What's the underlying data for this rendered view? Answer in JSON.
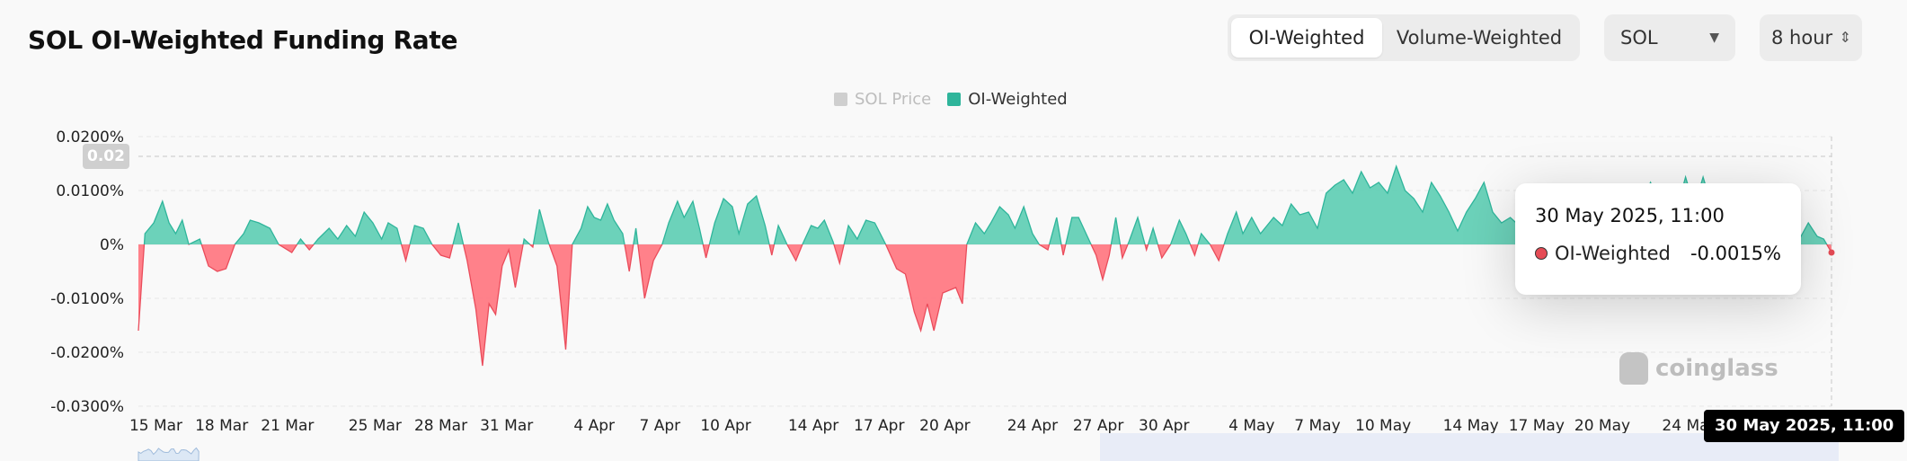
{
  "header": {
    "title": "SOL OI-Weighted Funding Rate",
    "toggle": [
      "OI-Weighted",
      "Volume-Weighted"
    ],
    "active_toggle": "OI-Weighted",
    "coin_select": "SOL",
    "interval_select": "8 hour"
  },
  "legend": [
    {
      "label": "SOL Price",
      "color": "#cfcfcf",
      "enabled": false
    },
    {
      "label": "OI-Weighted",
      "color": "#2fb59b",
      "enabled": true
    }
  ],
  "tooltip": {
    "date": "30 May 2025, 11:00",
    "series": "OI-Weighted",
    "value": "-0.0015%"
  },
  "crosshair": {
    "x_label": "30 May 2025, 11:00",
    "y_label": "0.02"
  },
  "watermark": "coinglass",
  "colors": {
    "positive": "#5ccdb3",
    "positive_line": "#2fb59b",
    "negative": "#ff7a84",
    "negative_line": "#ea4c5b"
  },
  "chart_data": {
    "type": "area",
    "title": "SOL OI-Weighted Funding Rate",
    "ylabel": "",
    "xlabel": "",
    "ylim": [
      -0.03,
      0.02
    ],
    "y_ticks": [
      "0.0200%",
      "0.0100%",
      "0%",
      "-0.0100%",
      "-0.0200%",
      "-0.0300%"
    ],
    "y_tick_values": [
      0.02,
      0.01,
      0,
      -0.01,
      -0.02,
      -0.03
    ],
    "x_ticks": [
      "15 Mar",
      "18 Mar",
      "21 Mar",
      "25 Mar",
      "28 Mar",
      "31 Mar",
      "4 Apr",
      "7 Apr",
      "10 Apr",
      "14 Apr",
      "17 Apr",
      "20 Apr",
      "24 Apr",
      "27 Apr",
      "30 Apr",
      "4 May",
      "7 May",
      "10 May",
      "14 May",
      "17 May",
      "20 May",
      "24 May"
    ],
    "x_tick_days": [
      74,
      77,
      80,
      84,
      87,
      90,
      94,
      97,
      100,
      104,
      107,
      110,
      114,
      117,
      120,
      124,
      127,
      130,
      134,
      137,
      140,
      144
    ],
    "x_range_days": [
      73.2,
      150.458
    ],
    "grid": true,
    "series": [
      {
        "name": "OI-Weighted",
        "unit": "%",
        "points": [
          [
            73.2,
            -0.016
          ],
          [
            73.5,
            0.002
          ],
          [
            73.9,
            0.004
          ],
          [
            74.3,
            0.008
          ],
          [
            74.6,
            0.004
          ],
          [
            74.9,
            0.002
          ],
          [
            75.2,
            0.0045
          ],
          [
            75.5,
            0
          ],
          [
            76.0,
            0.001
          ],
          [
            76.4,
            -0.004
          ],
          [
            76.8,
            -0.005
          ],
          [
            77.2,
            -0.0045
          ],
          [
            77.6,
            0
          ],
          [
            78.0,
            0.002
          ],
          [
            78.3,
            0.0045
          ],
          [
            78.7,
            0.004
          ],
          [
            79.2,
            0.003
          ],
          [
            79.6,
            0
          ],
          [
            80.2,
            -0.0015
          ],
          [
            80.6,
            0.001
          ],
          [
            81.0,
            -0.001
          ],
          [
            81.4,
            0.001
          ],
          [
            81.9,
            0.003
          ],
          [
            82.3,
            0.001
          ],
          [
            82.7,
            0.0035
          ],
          [
            83.1,
            0.0015
          ],
          [
            83.5,
            0.006
          ],
          [
            83.9,
            0.004
          ],
          [
            84.3,
            0.001
          ],
          [
            84.6,
            0.004
          ],
          [
            85.0,
            0.003
          ],
          [
            85.4,
            -0.003
          ],
          [
            85.8,
            0.0035
          ],
          [
            86.2,
            0.003
          ],
          [
            86.6,
            0
          ],
          [
            87.0,
            -0.002
          ],
          [
            87.4,
            -0.0025
          ],
          [
            87.8,
            0.004
          ],
          [
            88.2,
            -0.003
          ],
          [
            88.6,
            -0.012
          ],
          [
            88.9,
            -0.0225
          ],
          [
            89.2,
            -0.011
          ],
          [
            89.5,
            -0.013
          ],
          [
            89.8,
            -0.004
          ],
          [
            90.1,
            -0.001
          ],
          [
            90.4,
            -0.008
          ],
          [
            90.8,
            0.001
          ],
          [
            91.2,
            -0.0005
          ],
          [
            91.5,
            0.0065
          ],
          [
            91.9,
            0.0005
          ],
          [
            92.3,
            -0.004
          ],
          [
            92.7,
            -0.0195
          ],
          [
            93.0,
            0
          ],
          [
            93.4,
            0.003
          ],
          [
            93.7,
            0.007
          ],
          [
            94.0,
            0.005
          ],
          [
            94.3,
            0.0045
          ],
          [
            94.6,
            0.0075
          ],
          [
            94.9,
            0.0045
          ],
          [
            95.3,
            0.002
          ],
          [
            95.6,
            -0.005
          ],
          [
            95.9,
            0.003
          ],
          [
            96.3,
            -0.01
          ],
          [
            96.7,
            -0.003
          ],
          [
            97.1,
            0
          ],
          [
            97.4,
            0.004
          ],
          [
            97.8,
            0.008
          ],
          [
            98.1,
            0.005
          ],
          [
            98.5,
            0.008
          ],
          [
            98.8,
            0.003
          ],
          [
            99.1,
            -0.0025
          ],
          [
            99.5,
            0.004
          ],
          [
            99.9,
            0.0085
          ],
          [
            100.3,
            0.007
          ],
          [
            100.6,
            0.002
          ],
          [
            101.0,
            0.0075
          ],
          [
            101.4,
            0.009
          ],
          [
            101.8,
            0.0035
          ],
          [
            102.1,
            -0.002
          ],
          [
            102.4,
            0.0035
          ],
          [
            102.8,
            0
          ],
          [
            103.2,
            -0.003
          ],
          [
            103.5,
            0
          ],
          [
            103.9,
            0.0035
          ],
          [
            104.2,
            0.003
          ],
          [
            104.5,
            0.0045
          ],
          [
            104.9,
            0.0005
          ],
          [
            105.2,
            -0.0035
          ],
          [
            105.6,
            0.0035
          ],
          [
            106.0,
            0.001
          ],
          [
            106.4,
            0.0045
          ],
          [
            106.8,
            0.004
          ],
          [
            107.3,
            0
          ],
          [
            107.8,
            -0.0045
          ],
          [
            108.2,
            -0.0055
          ],
          [
            108.6,
            -0.0125
          ],
          [
            108.9,
            -0.016
          ],
          [
            109.2,
            -0.011
          ],
          [
            109.5,
            -0.016
          ],
          [
            109.9,
            -0.009
          ],
          [
            110.2,
            -0.0085
          ],
          [
            110.5,
            -0.008
          ],
          [
            110.8,
            -0.011
          ],
          [
            111.0,
            0
          ],
          [
            111.4,
            0.004
          ],
          [
            111.8,
            0.002
          ],
          [
            112.1,
            0.004
          ],
          [
            112.5,
            0.007
          ],
          [
            112.9,
            0.0055
          ],
          [
            113.2,
            0.003
          ],
          [
            113.6,
            0.007
          ],
          [
            114.0,
            0.002
          ],
          [
            114.3,
            0
          ],
          [
            114.7,
            -0.001
          ],
          [
            115.1,
            0.005
          ],
          [
            115.4,
            -0.002
          ],
          [
            115.8,
            0.005
          ],
          [
            116.1,
            0.005
          ],
          [
            116.5,
            0.0015
          ],
          [
            116.9,
            -0.002
          ],
          [
            117.2,
            -0.0065
          ],
          [
            117.5,
            -0.002
          ],
          [
            117.8,
            0.005
          ],
          [
            118.1,
            -0.0025
          ],
          [
            118.4,
            0.0005
          ],
          [
            118.8,
            0.005
          ],
          [
            119.2,
            -0.001
          ],
          [
            119.5,
            0.003
          ],
          [
            119.9,
            -0.0025
          ],
          [
            120.3,
            0
          ],
          [
            120.7,
            0.0045
          ],
          [
            121.0,
            0.002
          ],
          [
            121.4,
            -0.002
          ],
          [
            121.7,
            0.002
          ],
          [
            122.1,
            0
          ],
          [
            122.5,
            -0.003
          ],
          [
            122.9,
            0.002
          ],
          [
            123.3,
            0.006
          ],
          [
            123.6,
            0.002
          ],
          [
            124.0,
            0.005
          ],
          [
            124.4,
            0.002
          ],
          [
            124.7,
            0.0035
          ],
          [
            125.0,
            0.005
          ],
          [
            125.4,
            0.0035
          ],
          [
            125.8,
            0.0075
          ],
          [
            126.2,
            0.0055
          ],
          [
            126.6,
            0.006
          ],
          [
            127.0,
            0.003
          ],
          [
            127.4,
            0.0095
          ],
          [
            127.8,
            0.011
          ],
          [
            128.2,
            0.012
          ],
          [
            128.6,
            0.0095
          ],
          [
            129.0,
            0.0135
          ],
          [
            129.4,
            0.0105
          ],
          [
            129.8,
            0.0115
          ],
          [
            130.2,
            0.0095
          ],
          [
            130.6,
            0.0145
          ],
          [
            131.0,
            0.01
          ],
          [
            131.4,
            0.0085
          ],
          [
            131.8,
            0.006
          ],
          [
            132.2,
            0.0115
          ],
          [
            132.6,
            0.009
          ],
          [
            133.0,
            0.006
          ],
          [
            133.4,
            0.0025
          ],
          [
            133.8,
            0.006
          ],
          [
            134.2,
            0.0085
          ],
          [
            134.6,
            0.0115
          ],
          [
            135.0,
            0.006
          ],
          [
            135.4,
            0.004
          ],
          [
            135.8,
            0.005
          ],
          [
            136.2,
            0.0035
          ],
          [
            136.6,
            0.006
          ],
          [
            137.0,
            0.009
          ],
          [
            137.4,
            0.006
          ],
          [
            137.8,
            0.004
          ],
          [
            138.2,
            0.0065
          ],
          [
            138.6,
            0.0055
          ],
          [
            139.0,
            0.008
          ],
          [
            139.4,
            0.0055
          ],
          [
            139.8,
            0.007
          ],
          [
            140.2,
            0.005
          ],
          [
            140.6,
            0.0085
          ],
          [
            141.0,
            0.0095
          ],
          [
            141.4,
            0.007
          ],
          [
            141.8,
            0.008
          ],
          [
            142.2,
            0.0115
          ],
          [
            142.6,
            0.0075
          ],
          [
            143.0,
            0.009
          ],
          [
            143.4,
            0.0065
          ],
          [
            143.8,
            0.0125
          ],
          [
            144.2,
            0.007
          ],
          [
            144.6,
            0.0125
          ],
          [
            145.0,
            0.007
          ],
          [
            145.4,
            0.006
          ],
          [
            145.8,
            0.0055
          ],
          [
            146.2,
            0.004
          ],
          [
            146.6,
            0.005
          ],
          [
            147.0,
            0.003
          ],
          [
            147.4,
            0.0045
          ],
          [
            147.8,
            0.0025
          ],
          [
            148.2,
            0.0015
          ],
          [
            148.6,
            0.003
          ],
          [
            149.0,
            0.001
          ],
          [
            149.4,
            0.004
          ],
          [
            149.8,
            0.0015
          ],
          [
            150.1,
            0.001
          ],
          [
            150.458,
            -0.0015
          ]
        ]
      }
    ]
  }
}
